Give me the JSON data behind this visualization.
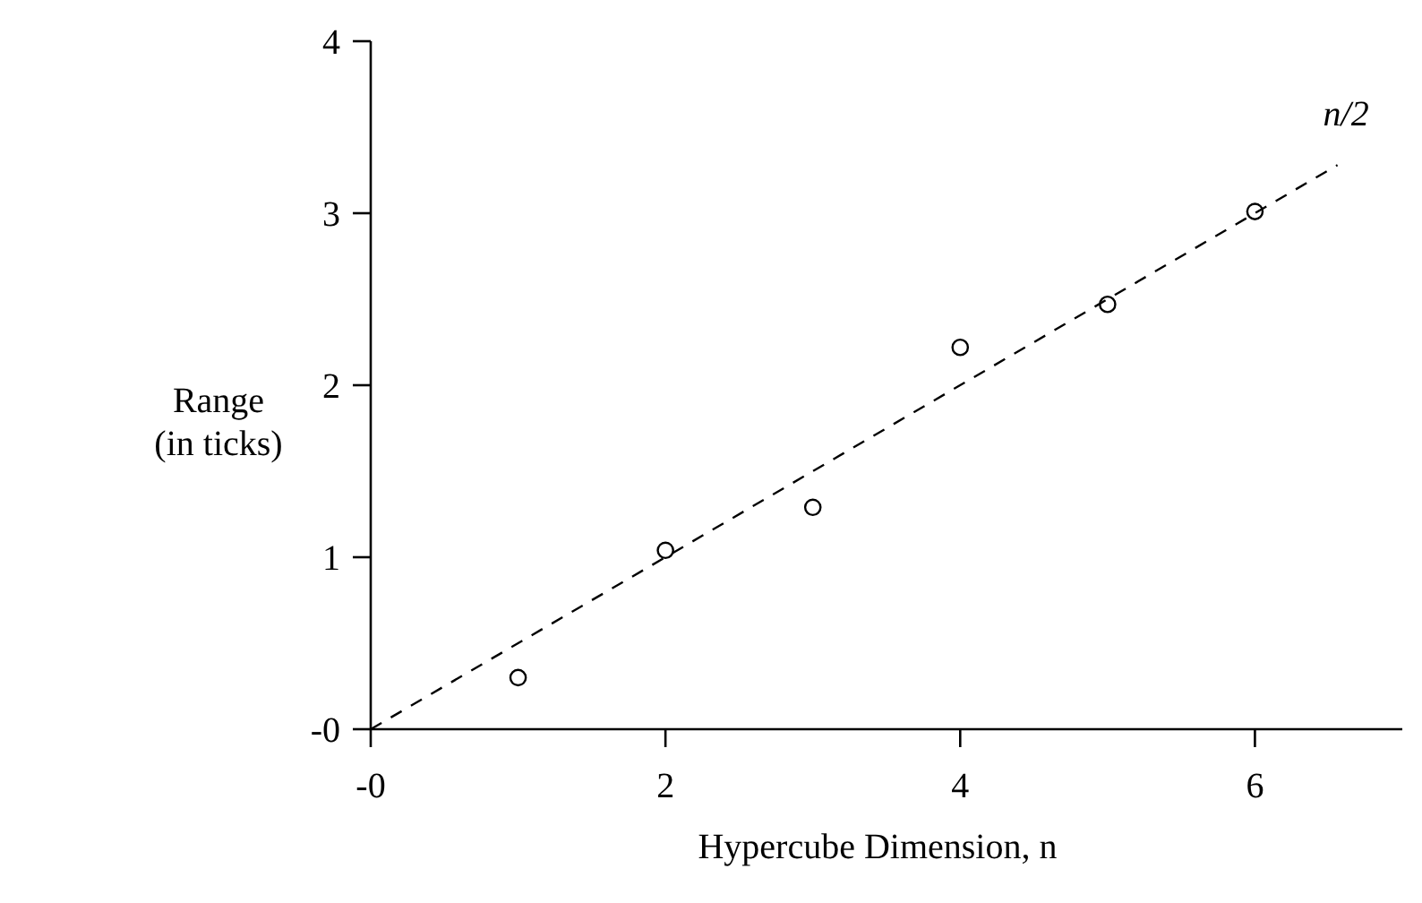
{
  "chart_data": {
    "type": "scatter",
    "xlabel": "Hypercube Dimension, n",
    "ylabel": "Range\n(in ticks)",
    "xlim": [
      0,
      7
    ],
    "ylim": [
      0,
      4
    ],
    "xticks": [
      {
        "value": 0,
        "label": "-0"
      },
      2,
      4,
      6
    ],
    "yticks": [
      {
        "value": 0,
        "label": "-0"
      },
      1,
      2,
      3,
      4
    ],
    "grid": false,
    "series": [
      {
        "color": "#000000",
        "marker": "circle",
        "x": [
          1,
          2,
          3,
          4,
          5,
          6
        ],
        "values": [
          0.3,
          1.04,
          1.29,
          2.22,
          2.47,
          3.01
        ]
      },
      {
        "type": "line",
        "name": "n/2",
        "color": "#000000",
        "line_style": "dashed",
        "x": [
          0,
          6.56
        ],
        "values": [
          0,
          3.28
        ]
      }
    ]
  }
}
